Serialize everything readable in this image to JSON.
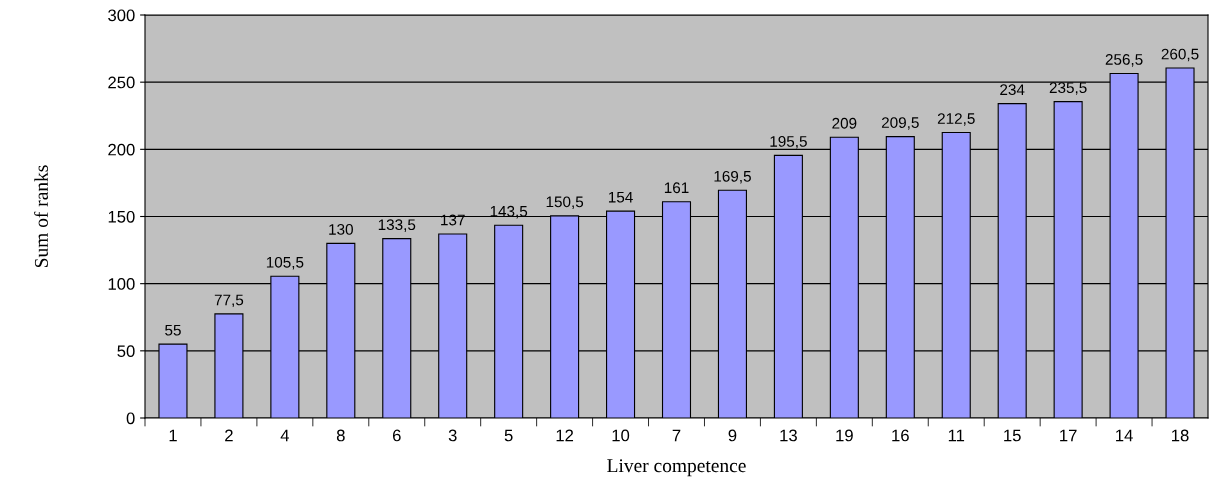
{
  "chart_data": {
    "type": "bar",
    "xlabel": "Liver competence",
    "ylabel": "Sum of ranks",
    "categories": [
      "1",
      "2",
      "4",
      "8",
      "6",
      "3",
      "5",
      "12",
      "10",
      "7",
      "9",
      "13",
      "19",
      "16",
      "11",
      "15",
      "17",
      "14",
      "18"
    ],
    "values": [
      55,
      77.5,
      105.5,
      130,
      133.5,
      137,
      143.5,
      150.5,
      154,
      161,
      169.5,
      195.5,
      209,
      209.5,
      212.5,
      234,
      235.5,
      256.5,
      260.5
    ],
    "value_labels": [
      "55",
      "77,5",
      "105,5",
      "130",
      "133,5",
      "137",
      "143,5",
      "150,5",
      "154",
      "161",
      "169,5",
      "195,5",
      "209",
      "209,5",
      "212,5",
      "234",
      "235,5",
      "256,5",
      "260,5"
    ],
    "color": "#9999ff",
    "ylim": [
      0,
      300
    ],
    "yticks": [
      0,
      50,
      100,
      150,
      200,
      250,
      300
    ],
    "grid": "y"
  }
}
